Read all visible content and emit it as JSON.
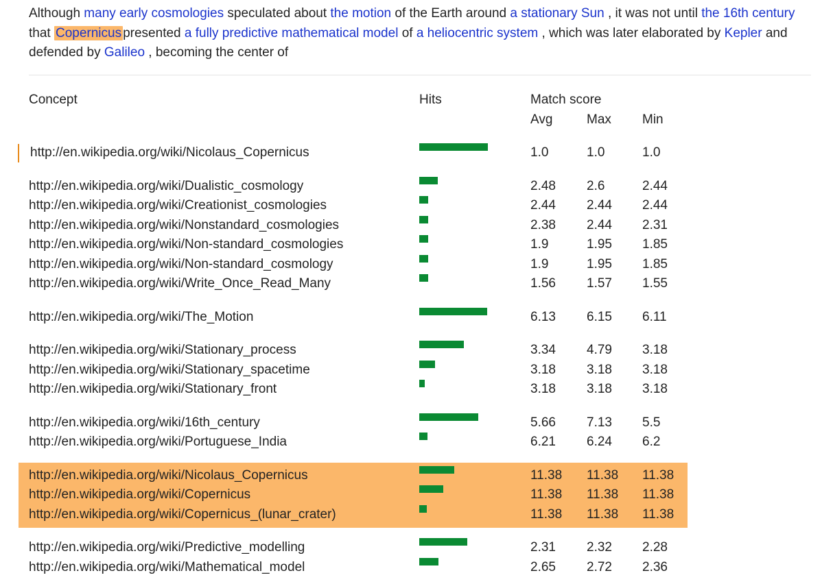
{
  "paragraph": [
    {
      "t": "text",
      "v": "Although "
    },
    {
      "t": "link",
      "v": "many early cosmologies"
    },
    {
      "t": "text",
      "v": " speculated about "
    },
    {
      "t": "link",
      "v": "the motion"
    },
    {
      "t": "text",
      "v": " of the Earth around "
    },
    {
      "t": "link",
      "v": "a stationary Sun"
    },
    {
      "t": "text",
      "v": " , it was not until "
    },
    {
      "t": "link",
      "v": "the 16th century"
    },
    {
      "t": "text",
      "v": " that "
    },
    {
      "t": "highlight",
      "v": "Copernicus"
    },
    {
      "t": "text",
      "v": "presented "
    },
    {
      "t": "link",
      "v": "a fully predictive mathematical model"
    },
    {
      "t": "text",
      "v": " of "
    },
    {
      "t": "link",
      "v": "a heliocentric system"
    },
    {
      "t": "text",
      "v": " , which was later elaborated by "
    },
    {
      "t": "link",
      "v": "Kepler"
    },
    {
      "t": "text",
      "v": " and defended by "
    },
    {
      "t": "link",
      "v": "Galileo"
    },
    {
      "t": "text",
      "v": " , becoming the center of"
    }
  ],
  "table": {
    "headers": {
      "concept": "Concept",
      "hits": "Hits",
      "match_score": "Match score",
      "avg": "Avg",
      "max": "Max",
      "min": "Min"
    },
    "groups": [
      {
        "highlighted": false,
        "selected": true,
        "rows": [
          {
            "uri": "http://en.wikipedia.org/wiki/Nicolaus_Copernicus",
            "hits": 1.0,
            "avg": "1.0",
            "max": "1.0",
            "min": "1.0"
          }
        ]
      },
      {
        "highlighted": false,
        "rows": [
          {
            "uri": "http://en.wikipedia.org/wiki/Dualistic_cosmology",
            "hits": 0.27,
            "avg": "2.48",
            "max": "2.6",
            "min": "2.44"
          },
          {
            "uri": "http://en.wikipedia.org/wiki/Creationist_cosmologies",
            "hits": 0.13,
            "avg": "2.44",
            "max": "2.44",
            "min": "2.44"
          },
          {
            "uri": "http://en.wikipedia.org/wiki/Nonstandard_cosmologies",
            "hits": 0.13,
            "avg": "2.38",
            "max": "2.44",
            "min": "2.31"
          },
          {
            "uri": "http://en.wikipedia.org/wiki/Non-standard_cosmologies",
            "hits": 0.13,
            "avg": "1.9",
            "max": "1.95",
            "min": "1.85"
          },
          {
            "uri": "http://en.wikipedia.org/wiki/Non-standard_cosmology",
            "hits": 0.13,
            "avg": "1.9",
            "max": "1.95",
            "min": "1.85"
          },
          {
            "uri": "http://en.wikipedia.org/wiki/Write_Once_Read_Many",
            "hits": 0.13,
            "avg": "1.56",
            "max": "1.57",
            "min": "1.55"
          }
        ]
      },
      {
        "highlighted": false,
        "rows": [
          {
            "uri": "http://en.wikipedia.org/wiki/The_Motion",
            "hits": 0.99,
            "avg": "6.13",
            "max": "6.15",
            "min": "6.11"
          }
        ]
      },
      {
        "highlighted": false,
        "rows": [
          {
            "uri": "http://en.wikipedia.org/wiki/Stationary_process",
            "hits": 0.65,
            "avg": "3.34",
            "max": "4.79",
            "min": "3.18"
          },
          {
            "uri": "http://en.wikipedia.org/wiki/Stationary_spacetime",
            "hits": 0.23,
            "avg": "3.18",
            "max": "3.18",
            "min": "3.18"
          },
          {
            "uri": "http://en.wikipedia.org/wiki/Stationary_front",
            "hits": 0.08,
            "avg": "3.18",
            "max": "3.18",
            "min": "3.18"
          }
        ]
      },
      {
        "highlighted": false,
        "rows": [
          {
            "uri": "http://en.wikipedia.org/wiki/16th_century",
            "hits": 0.86,
            "avg": "5.66",
            "max": "7.13",
            "min": "5.5"
          },
          {
            "uri": "http://en.wikipedia.org/wiki/Portuguese_India",
            "hits": 0.12,
            "avg": "6.21",
            "max": "6.24",
            "min": "6.2"
          }
        ]
      },
      {
        "highlighted": true,
        "rows": [
          {
            "uri": "http://en.wikipedia.org/wiki/Nicolaus_Copernicus",
            "hits": 0.51,
            "avg": "11.38",
            "max": "11.38",
            "min": "11.38"
          },
          {
            "uri": "http://en.wikipedia.org/wiki/Copernicus",
            "hits": 0.35,
            "avg": "11.38",
            "max": "11.38",
            "min": "11.38"
          },
          {
            "uri": "http://en.wikipedia.org/wiki/Copernicus_(lunar_crater)",
            "hits": 0.11,
            "avg": "11.38",
            "max": "11.38",
            "min": "11.38"
          }
        ]
      },
      {
        "highlighted": false,
        "rows": [
          {
            "uri": "http://en.wikipedia.org/wiki/Predictive_modelling",
            "hits": 0.7,
            "avg": "2.31",
            "max": "2.32",
            "min": "2.28"
          },
          {
            "uri": "http://en.wikipedia.org/wiki/Mathematical_model",
            "hits": 0.28,
            "avg": "2.65",
            "max": "2.72",
            "min": "2.36"
          }
        ]
      }
    ]
  },
  "colors": {
    "link": "#1a33cc",
    "highlight": "#fbb76a",
    "bar": "#0a8a33",
    "selected_marker": "#e88b1c",
    "text": "#222222"
  }
}
